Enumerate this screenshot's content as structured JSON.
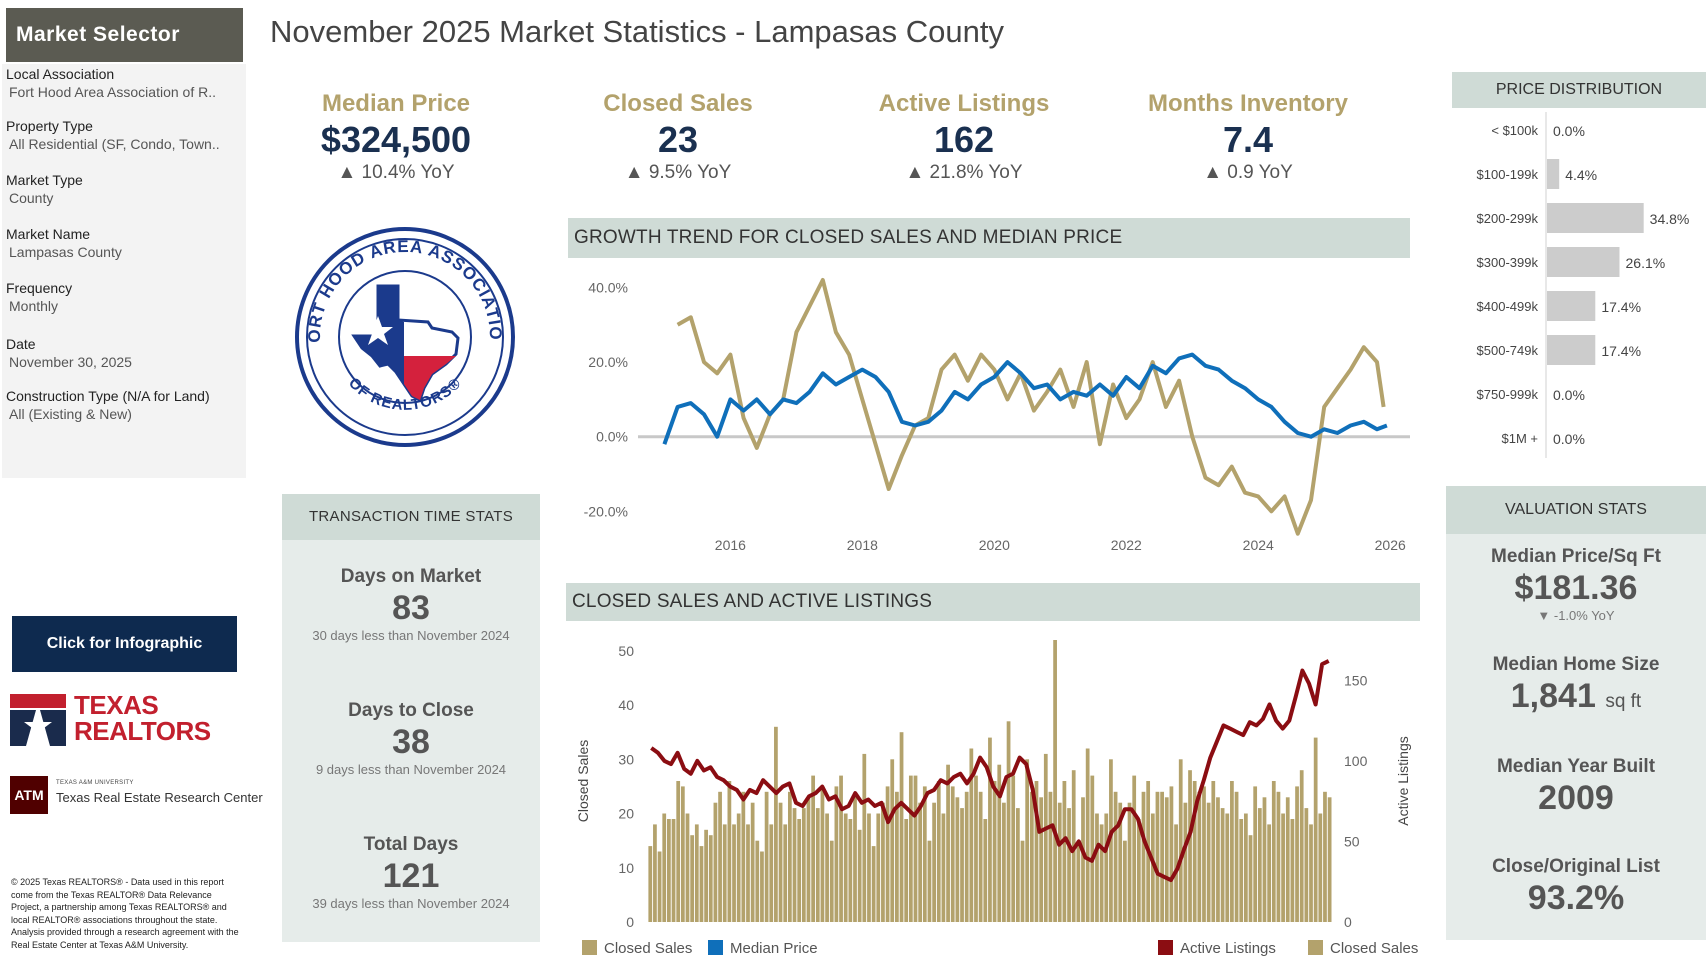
{
  "page_title": "November 2025 Market Statistics - Lampasas County",
  "sidebar": {
    "title": "Market Selector",
    "filters": [
      {
        "label": "Local Association",
        "value": "Fort Hood Area Association of R.."
      },
      {
        "label": "Property Type",
        "value": "All Residential (SF, Condo, Town.."
      },
      {
        "label": "Market Type",
        "value": "County"
      },
      {
        "label": "Market Name",
        "value": "Lampasas County"
      },
      {
        "label": "Frequency",
        "value": "Monthly"
      },
      {
        "label": "Date",
        "value": "November 30, 2025"
      },
      {
        "label": "Construction Type (N/A for Land)",
        "value": "All (Existing & New)"
      }
    ],
    "infographic_button": "Click for Infographic",
    "texas_realtors_logo": [
      "TEXAS",
      "REALTORS"
    ],
    "tamu_logo": {
      "small": "TEXAS A&M UNIVERSITY",
      "big": "Texas Real Estate Research Center"
    },
    "copyright": "© 2025 Texas REALTORS® - Data used in this report come from the Texas REALTOR® Data Relevance Project, a partnership among Texas REALTORS® and local REALTOR® associations throughout the state. Analysis provided through a research agreement with the Real Estate Center at Texas A&M University."
  },
  "kpis": [
    {
      "label": "Median Price",
      "value": "$324,500",
      "yoy": "▲ 10.4% YoY"
    },
    {
      "label": "Closed Sales",
      "value": "23",
      "yoy": "▲ 9.5% YoY"
    },
    {
      "label": "Active Listings",
      "value": "162",
      "yoy": "▲ 21.8% YoY"
    },
    {
      "label": "Months Inventory",
      "value": "7.4",
      "yoy": "▲ 0.9 YoY"
    }
  ],
  "seal": {
    "top_text": "FORT HOOD AREA ASSOCIATION",
    "bottom_text": "OF REALTORS®"
  },
  "transaction": {
    "header": "TRANSACTION TIME STATS",
    "stats": [
      {
        "label": "Days on Market",
        "value": "83",
        "sub": "30 days less than November 2024"
      },
      {
        "label": "Days to Close",
        "value": "38",
        "sub": "9 days less than November 2024"
      },
      {
        "label": "Total Days",
        "value": "121",
        "sub": "39 days less than November 2024"
      }
    ]
  },
  "valuation": {
    "header": "VALUATION STATS",
    "stats": [
      {
        "label": "Median Price/Sq Ft",
        "value": "$181.36",
        "sub": "▼ -1.0% YoY"
      },
      {
        "label": "Median Home Size",
        "value": "1,841",
        "unit": "sq ft"
      },
      {
        "label": "Median Year Built",
        "value": "2009"
      },
      {
        "label": "Close/Original List",
        "value": "93.2%"
      }
    ]
  },
  "colors": {
    "tan": "#b3a26c",
    "blue": "#0f6fba",
    "maroon": "#8b0d12",
    "navy": "#1a3050"
  },
  "chart_data": [
    {
      "type": "line",
      "title": "GROWTH TREND FOR CLOSED SALES AND MEDIAN PRICE",
      "x_ticks": [
        "2016",
        "2018",
        "2020",
        "2022",
        "2024",
        "2026"
      ],
      "y_ticks": [
        "40.0%",
        "20.0%",
        "0.0%",
        "-20.0%"
      ],
      "ylim": [
        -25,
        42
      ],
      "xlim": [
        2014.6,
        2026.3
      ],
      "series": [
        {
          "name": "Closed Sales",
          "color": "#b3a26c",
          "x": [
            2015.2,
            2015.4,
            2015.6,
            2015.8,
            2016.0,
            2016.2,
            2016.4,
            2016.6,
            2016.8,
            2017.0,
            2017.2,
            2017.4,
            2017.6,
            2017.8,
            2018.0,
            2018.2,
            2018.4,
            2018.6,
            2018.8,
            2019.0,
            2019.2,
            2019.4,
            2019.6,
            2019.8,
            2020.0,
            2020.2,
            2020.4,
            2020.6,
            2020.8,
            2021.0,
            2021.2,
            2021.4,
            2021.6,
            2021.8,
            2022.0,
            2022.2,
            2022.4,
            2022.6,
            2022.8,
            2023.0,
            2023.2,
            2023.4,
            2023.6,
            2023.8,
            2024.0,
            2024.2,
            2024.4,
            2024.6,
            2024.8,
            2025.0,
            2025.2,
            2025.4,
            2025.6,
            2025.8,
            2025.9
          ],
          "values": [
            30,
            32,
            20,
            17,
            22,
            5,
            -3,
            6,
            10,
            28,
            35,
            42,
            28,
            22,
            10,
            -2,
            -14,
            -5,
            3,
            5,
            18,
            22,
            15,
            22,
            18,
            10,
            17,
            7,
            12,
            18,
            8,
            20,
            -2,
            14,
            5,
            10,
            20,
            8,
            15,
            0,
            -11,
            -13,
            -8,
            -15,
            -16,
            -20,
            -16,
            -26,
            -17,
            8,
            13,
            18,
            24,
            20,
            8
          ]
        },
        {
          "name": "Median Price",
          "color": "#0f6fba",
          "x": [
            2015.0,
            2015.2,
            2015.4,
            2015.6,
            2015.8,
            2016.0,
            2016.2,
            2016.4,
            2016.6,
            2016.8,
            2017.0,
            2017.2,
            2017.4,
            2017.6,
            2017.8,
            2018.0,
            2018.2,
            2018.4,
            2018.6,
            2018.8,
            2019.0,
            2019.2,
            2019.4,
            2019.6,
            2019.8,
            2020.0,
            2020.2,
            2020.4,
            2020.6,
            2020.8,
            2021.0,
            2021.2,
            2021.4,
            2021.6,
            2021.8,
            2022.0,
            2022.2,
            2022.4,
            2022.6,
            2022.8,
            2023.0,
            2023.2,
            2023.4,
            2023.6,
            2023.8,
            2024.0,
            2024.2,
            2024.4,
            2024.6,
            2024.8,
            2025.0,
            2025.2,
            2025.4,
            2025.6,
            2025.8,
            2025.95
          ],
          "values": [
            -2,
            8,
            9,
            6,
            0,
            10,
            7,
            10,
            6,
            10,
            9,
            12,
            17,
            14,
            16,
            18,
            16,
            12,
            4,
            3,
            4,
            7,
            12,
            10,
            14,
            16,
            20,
            17,
            13,
            14,
            10,
            12,
            11,
            14,
            11,
            16,
            13,
            19,
            17,
            21,
            22,
            19,
            18,
            15,
            13,
            10,
            8,
            4,
            1,
            0,
            2,
            1,
            3,
            4,
            2,
            3
          ]
        }
      ]
    },
    {
      "type": "bar",
      "title": "CLOSED SALES AND  ACTIVE LISTINGS",
      "ylabel": "Closed Sales",
      "y2label": "Active Listings",
      "y_ticks": [
        "50",
        "40",
        "30",
        "20",
        "10",
        "0"
      ],
      "y2_ticks": [
        "150",
        "100",
        "50",
        "0"
      ],
      "ylim": [
        0,
        52
      ],
      "y2lim": [
        0,
        175
      ],
      "series": [
        {
          "name": "Closed Sales",
          "color": "#b3a26c",
          "axis": "left",
          "values": [
            14,
            18,
            13,
            20,
            19,
            19,
            26,
            25,
            20,
            16,
            18,
            14,
            17,
            16,
            22,
            24,
            18,
            26,
            18,
            20,
            24,
            18,
            22,
            15,
            13,
            24,
            18,
            36,
            22,
            18,
            24,
            21,
            19,
            21,
            23,
            27,
            21,
            25,
            20,
            15,
            25,
            27,
            20,
            19,
            23,
            17,
            31,
            20,
            14,
            20,
            22,
            25,
            30,
            24,
            35,
            19,
            27,
            27,
            22,
            25,
            15,
            22,
            26,
            20,
            29,
            25,
            23,
            21,
            24,
            32,
            27,
            24,
            19,
            34,
            26,
            29,
            22,
            37,
            27,
            21,
            15,
            30,
            24,
            26,
            23,
            31,
            24,
            52,
            22,
            26,
            21,
            28,
            15,
            23,
            32,
            27,
            20,
            18,
            20,
            30,
            24,
            22,
            15,
            22,
            27,
            19,
            24,
            26,
            20,
            24,
            24,
            23,
            25,
            18,
            30,
            22,
            28,
            26,
            24,
            25,
            22,
            26,
            23,
            21,
            20,
            26,
            24,
            19,
            20,
            16,
            25,
            21,
            23,
            18,
            26,
            24,
            20,
            23,
            19,
            25,
            28,
            21,
            18,
            34,
            20,
            24,
            23
          ]
        },
        {
          "name": "Active Listings",
          "color": "#8b0d12",
          "axis": "right",
          "values": [
            108,
            105,
            100,
            98,
            105,
            95,
            92,
            100,
            94,
            96,
            90,
            88,
            84,
            82,
            76,
            82,
            80,
            88,
            84,
            80,
            84,
            86,
            74,
            72,
            78,
            80,
            84,
            76,
            78,
            70,
            72,
            80,
            74,
            76,
            72,
            74,
            62,
            70,
            74,
            70,
            66,
            72,
            80,
            82,
            88,
            86,
            90,
            92,
            86,
            92,
            102,
            96,
            84,
            78,
            90,
            92,
            102,
            98,
            82,
            56,
            58,
            60,
            48,
            52,
            44,
            50,
            40,
            38,
            48,
            44,
            56,
            60,
            70,
            70,
            64,
            50,
            40,
            30,
            28,
            26,
            33,
            45,
            56,
            75,
            88,
            102,
            112,
            122,
            120,
            118,
            116,
            124,
            122,
            126,
            135,
            125,
            120,
            125,
            140,
            156,
            148,
            135,
            160,
            162
          ]
        }
      ]
    },
    {
      "type": "bar",
      "title": "PRICE DISTRIBUTION",
      "categories": [
        "< $100k",
        "$100-199k",
        "$200-299k",
        "$300-399k",
        "$400-499k",
        "$500-749k",
        "$750-999k",
        "$1M +"
      ],
      "values": [
        0.0,
        4.4,
        34.8,
        26.1,
        17.4,
        17.4,
        0.0,
        0.0
      ],
      "labels": [
        "0.0%",
        "4.4%",
        "34.8%",
        "26.1%",
        "17.4%",
        "17.4%",
        "0.0%",
        "0.0%"
      ]
    }
  ],
  "legends": {
    "trend": [
      "Closed Sales",
      "Median Price"
    ],
    "sales": [
      "Active Listings",
      "Closed Sales"
    ]
  }
}
